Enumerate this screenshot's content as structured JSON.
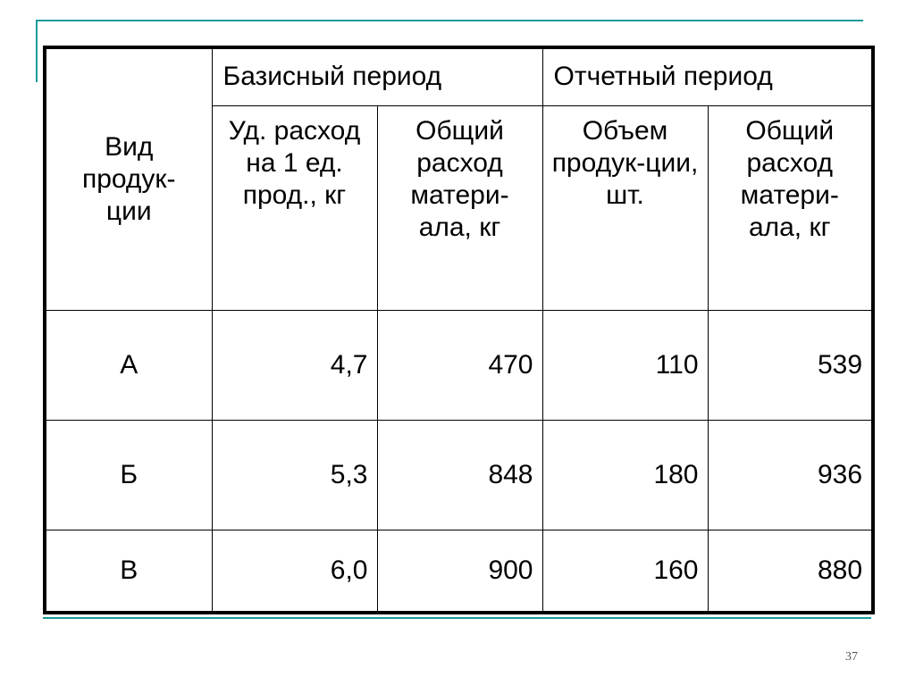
{
  "table": {
    "col1_header": "Вид продук-ции",
    "group_headers": [
      "Базисный период",
      "Отчетный период"
    ],
    "sub_headers": [
      "Уд. расход на 1 ед. прод., кг",
      "Общий расход матери-ала, кг",
      "Объем продук-ции, шт.",
      "Общий расход матери-ала, кг"
    ],
    "rows": [
      {
        "product": "А",
        "values": [
          "4,7",
          "470",
          "110",
          "539"
        ]
      },
      {
        "product": "Б",
        "values": [
          "5,3",
          "848",
          "180",
          "936"
        ]
      },
      {
        "product": "В",
        "values": [
          "6,0",
          "900",
          "160",
          "880"
        ]
      }
    ]
  },
  "page_number": "37",
  "colors": {
    "accent_line": "#1a9a9a"
  }
}
